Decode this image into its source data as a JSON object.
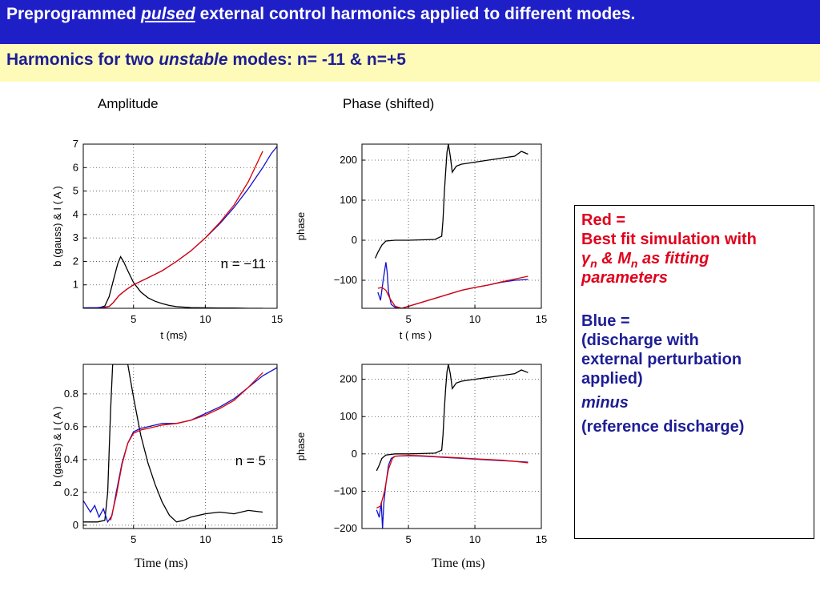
{
  "header": {
    "title_pre": "Preprogrammed",
    "title_emph": "pulsed",
    "title_post": "external control harmonics applied to different modes.",
    "subtitle_pre": "Harmonics for two",
    "subtitle_emph": "unstable",
    "subtitle_post": "modes: n= -11  & n=+5"
  },
  "columns": {
    "left": "Amplitude",
    "right": "Phase (shifted)"
  },
  "time_labels": {
    "left": "Time (ms)",
    "right": "Time (ms)"
  },
  "legend": {
    "red_title": "Red =",
    "red_line1": "Best fit simulation with",
    "red_gamma": "γ",
    "red_n1": "n",
    "red_and": " & M",
    "red_n2": "n",
    "red_as": " as fitting",
    "red_line3": "parameters",
    "blue_title": "Blue =",
    "blue_line1": "(discharge with",
    "blue_line2": "external perturbation",
    "blue_line3": "applied)",
    "minus": "minus",
    "blue_line4": "(reference discharge)"
  },
  "colors": {
    "red": "#e0001c",
    "blue": "#1d1d96",
    "black": "#000000",
    "title_bg": "#1f1fc8",
    "subtitle_bg": "#fefbb8"
  },
  "chart_data": [
    {
      "type": "line",
      "id": "amp-top",
      "xlabel": "t (ms)",
      "ylabel": "b (gauss)  & I ( A )",
      "annotation": "n = −11",
      "xlim": [
        1.5,
        15
      ],
      "ylim": [
        0,
        7
      ],
      "xticks": [
        5,
        10,
        15
      ],
      "yticks": [
        1,
        2,
        3,
        4,
        5,
        6,
        7
      ],
      "grid": true,
      "series": [
        {
          "color": "black",
          "x": [
            1.5,
            2.5,
            3.0,
            3.3,
            3.6,
            3.9,
            4.1,
            4.3,
            4.6,
            5.0,
            5.5,
            6.0,
            6.5,
            7.0,
            7.5,
            8.0,
            9.0,
            10.0,
            11.0,
            12.0,
            13.0,
            14.0
          ],
          "y": [
            0.0,
            0.0,
            0.1,
            0.5,
            1.2,
            1.9,
            2.2,
            2.0,
            1.6,
            1.1,
            0.7,
            0.45,
            0.3,
            0.2,
            0.12,
            0.07,
            0.03,
            0.02,
            0.01,
            0.01,
            0.0,
            0.0
          ]
        },
        {
          "color": "blue",
          "x": [
            1.5,
            2.5,
            3.0,
            3.3,
            3.6,
            4.0,
            4.5,
            5.0,
            6.0,
            7.0,
            8.0,
            9.0,
            10.0,
            11.0,
            12.0,
            13.0,
            14.0,
            14.6,
            15.0
          ],
          "y": [
            0.02,
            0.03,
            0.05,
            0.08,
            0.25,
            0.55,
            0.8,
            1.0,
            1.3,
            1.6,
            2.0,
            2.45,
            3.0,
            3.6,
            4.3,
            5.1,
            6.0,
            6.6,
            6.9
          ]
        },
        {
          "color": "red",
          "x": [
            2.8,
            3.3,
            3.6,
            4.0,
            4.5,
            5.0,
            6.0,
            7.0,
            8.0,
            9.0,
            10.0,
            11.0,
            12.0,
            13.0,
            14.0
          ],
          "y": [
            0.0,
            0.08,
            0.25,
            0.55,
            0.8,
            1.0,
            1.3,
            1.6,
            2.0,
            2.45,
            3.0,
            3.65,
            4.4,
            5.4,
            6.7
          ]
        }
      ]
    },
    {
      "type": "line",
      "id": "phase-top",
      "xlabel": "t  ( ms )",
      "ylabel": "phase",
      "annotation": "",
      "xlim": [
        1.5,
        15
      ],
      "ylim": [
        -170,
        240
      ],
      "xticks": [
        5,
        10,
        15
      ],
      "yticks": [
        -100,
        0,
        100,
        200
      ],
      "grid": true,
      "series": [
        {
          "color": "black",
          "x": [
            2.5,
            2.7,
            3.0,
            3.3,
            4.0,
            5.0,
            6.0,
            7.0,
            7.5,
            7.6,
            7.7,
            7.8,
            7.9,
            8.0,
            8.15,
            8.3,
            8.6,
            9.0,
            10.0,
            11.0,
            12.0,
            13.0,
            13.5,
            14.0
          ],
          "y": [
            -45,
            -30,
            -12,
            -2,
            0,
            0,
            1,
            2,
            10,
            50,
            120,
            170,
            220,
            240,
            210,
            170,
            185,
            190,
            195,
            200,
            205,
            210,
            222,
            215
          ]
        },
        {
          "color": "blue",
          "x": [
            2.7,
            2.9,
            3.1,
            3.3,
            3.4,
            3.5,
            3.7,
            4.0,
            4.5,
            5.0,
            6.0,
            7.0,
            8.0,
            9.0,
            10.0,
            11.0,
            12.0,
            13.0,
            14.0
          ],
          "y": [
            -130,
            -150,
            -100,
            -55,
            -80,
            -130,
            -160,
            -168,
            -170,
            -165,
            -155,
            -145,
            -135,
            -125,
            -118,
            -112,
            -105,
            -100,
            -98
          ]
        },
        {
          "color": "red",
          "x": [
            2.7,
            3.0,
            3.3,
            3.6,
            4.0,
            4.5,
            5.0,
            6.0,
            7.0,
            8.0,
            9.0,
            10.0,
            11.0,
            12.0,
            13.0,
            14.0
          ],
          "y": [
            -120,
            -118,
            -125,
            -145,
            -165,
            -170,
            -165,
            -155,
            -145,
            -135,
            -125,
            -118,
            -112,
            -104,
            -97,
            -90
          ]
        }
      ]
    },
    {
      "type": "line",
      "id": "amp-bottom",
      "xlabel": "",
      "ylabel": "b (gauss)  & I ( A )",
      "annotation": "n = 5",
      "xlim": [
        1.5,
        15
      ],
      "ylim": [
        -0.02,
        0.98
      ],
      "xticks": [
        5,
        10,
        15
      ],
      "yticks": [
        0,
        0.2,
        0.4,
        0.6,
        0.8
      ],
      "grid": true,
      "series": [
        {
          "color": "black",
          "x": [
            1.5,
            2.5,
            3.0,
            3.2,
            3.4,
            3.55,
            3.7,
            4.0,
            4.3,
            4.6,
            5.0,
            5.5,
            6.0,
            6.5,
            7.0,
            7.5,
            8.0,
            8.5,
            9.0,
            10.0,
            11.0,
            12.0,
            13.0,
            14.0
          ],
          "y": [
            0.02,
            0.02,
            0.03,
            0.2,
            0.7,
            0.98,
            0.98,
            0.98,
            0.98,
            0.98,
            0.78,
            0.55,
            0.38,
            0.25,
            0.14,
            0.06,
            0.02,
            0.03,
            0.05,
            0.07,
            0.08,
            0.07,
            0.09,
            0.08
          ]
        },
        {
          "color": "blue",
          "x": [
            1.5,
            2.0,
            2.3,
            2.6,
            2.9,
            3.2,
            3.5,
            3.8,
            4.2,
            4.6,
            5.0,
            5.5,
            6.0,
            7.0,
            8.0,
            9.0,
            10.0,
            11.0,
            12.0,
            13.0,
            14.0,
            15.0
          ],
          "y": [
            0.15,
            0.08,
            0.12,
            0.05,
            0.1,
            0.02,
            0.06,
            0.2,
            0.38,
            0.5,
            0.57,
            0.59,
            0.6,
            0.62,
            0.62,
            0.64,
            0.68,
            0.72,
            0.77,
            0.84,
            0.91,
            0.96
          ]
        },
        {
          "color": "red",
          "x": [
            3.4,
            3.8,
            4.2,
            4.6,
            5.0,
            5.5,
            6.0,
            7.0,
            8.0,
            9.0,
            10.0,
            11.0,
            12.0,
            13.0,
            14.0
          ],
          "y": [
            0.03,
            0.18,
            0.37,
            0.5,
            0.56,
            0.58,
            0.59,
            0.61,
            0.62,
            0.64,
            0.67,
            0.71,
            0.76,
            0.84,
            0.93
          ]
        }
      ]
    },
    {
      "type": "line",
      "id": "phase-bottom",
      "xlabel": "",
      "ylabel": "phase",
      "annotation": "",
      "xlim": [
        1.5,
        15
      ],
      "ylim": [
        -200,
        240
      ],
      "xticks": [
        5,
        10,
        15
      ],
      "yticks": [
        -200,
        -100,
        0,
        100,
        200
      ],
      "grid": true,
      "series": [
        {
          "color": "black",
          "x": [
            2.6,
            2.8,
            3.0,
            3.3,
            4.0,
            5.0,
            6.0,
            7.0,
            7.5,
            7.6,
            7.7,
            7.8,
            7.9,
            8.0,
            8.15,
            8.3,
            8.6,
            9.0,
            10.0,
            11.0,
            12.0,
            13.0,
            13.5,
            14.0
          ],
          "y": [
            -45,
            -30,
            -12,
            -3,
            0,
            0,
            1,
            2,
            10,
            50,
            120,
            175,
            220,
            240,
            215,
            175,
            190,
            195,
            200,
            205,
            210,
            215,
            225,
            218
          ]
        },
        {
          "color": "blue",
          "x": [
            2.6,
            2.8,
            2.95,
            3.05,
            3.15,
            3.3,
            3.5,
            3.7,
            4.0,
            5.0,
            6.0,
            7.0,
            8.0,
            9.0,
            10.0,
            11.0,
            12.0,
            13.0,
            14.0
          ],
          "y": [
            -150,
            -170,
            -130,
            -200,
            -130,
            -80,
            -30,
            -12,
            -6,
            -5,
            -6,
            -8,
            -10,
            -12,
            -14,
            -16,
            -18,
            -20,
            -22
          ]
        },
        {
          "color": "red",
          "x": [
            2.6,
            2.9,
            3.2,
            3.5,
            3.8,
            4.0,
            5.0,
            6.0,
            7.0,
            8.0,
            9.0,
            10.0,
            11.0,
            12.0,
            13.0,
            14.0
          ],
          "y": [
            -145,
            -140,
            -100,
            -40,
            -12,
            -6,
            -4,
            -5,
            -7,
            -9,
            -11,
            -13,
            -15,
            -17,
            -20,
            -24
          ]
        }
      ]
    }
  ]
}
